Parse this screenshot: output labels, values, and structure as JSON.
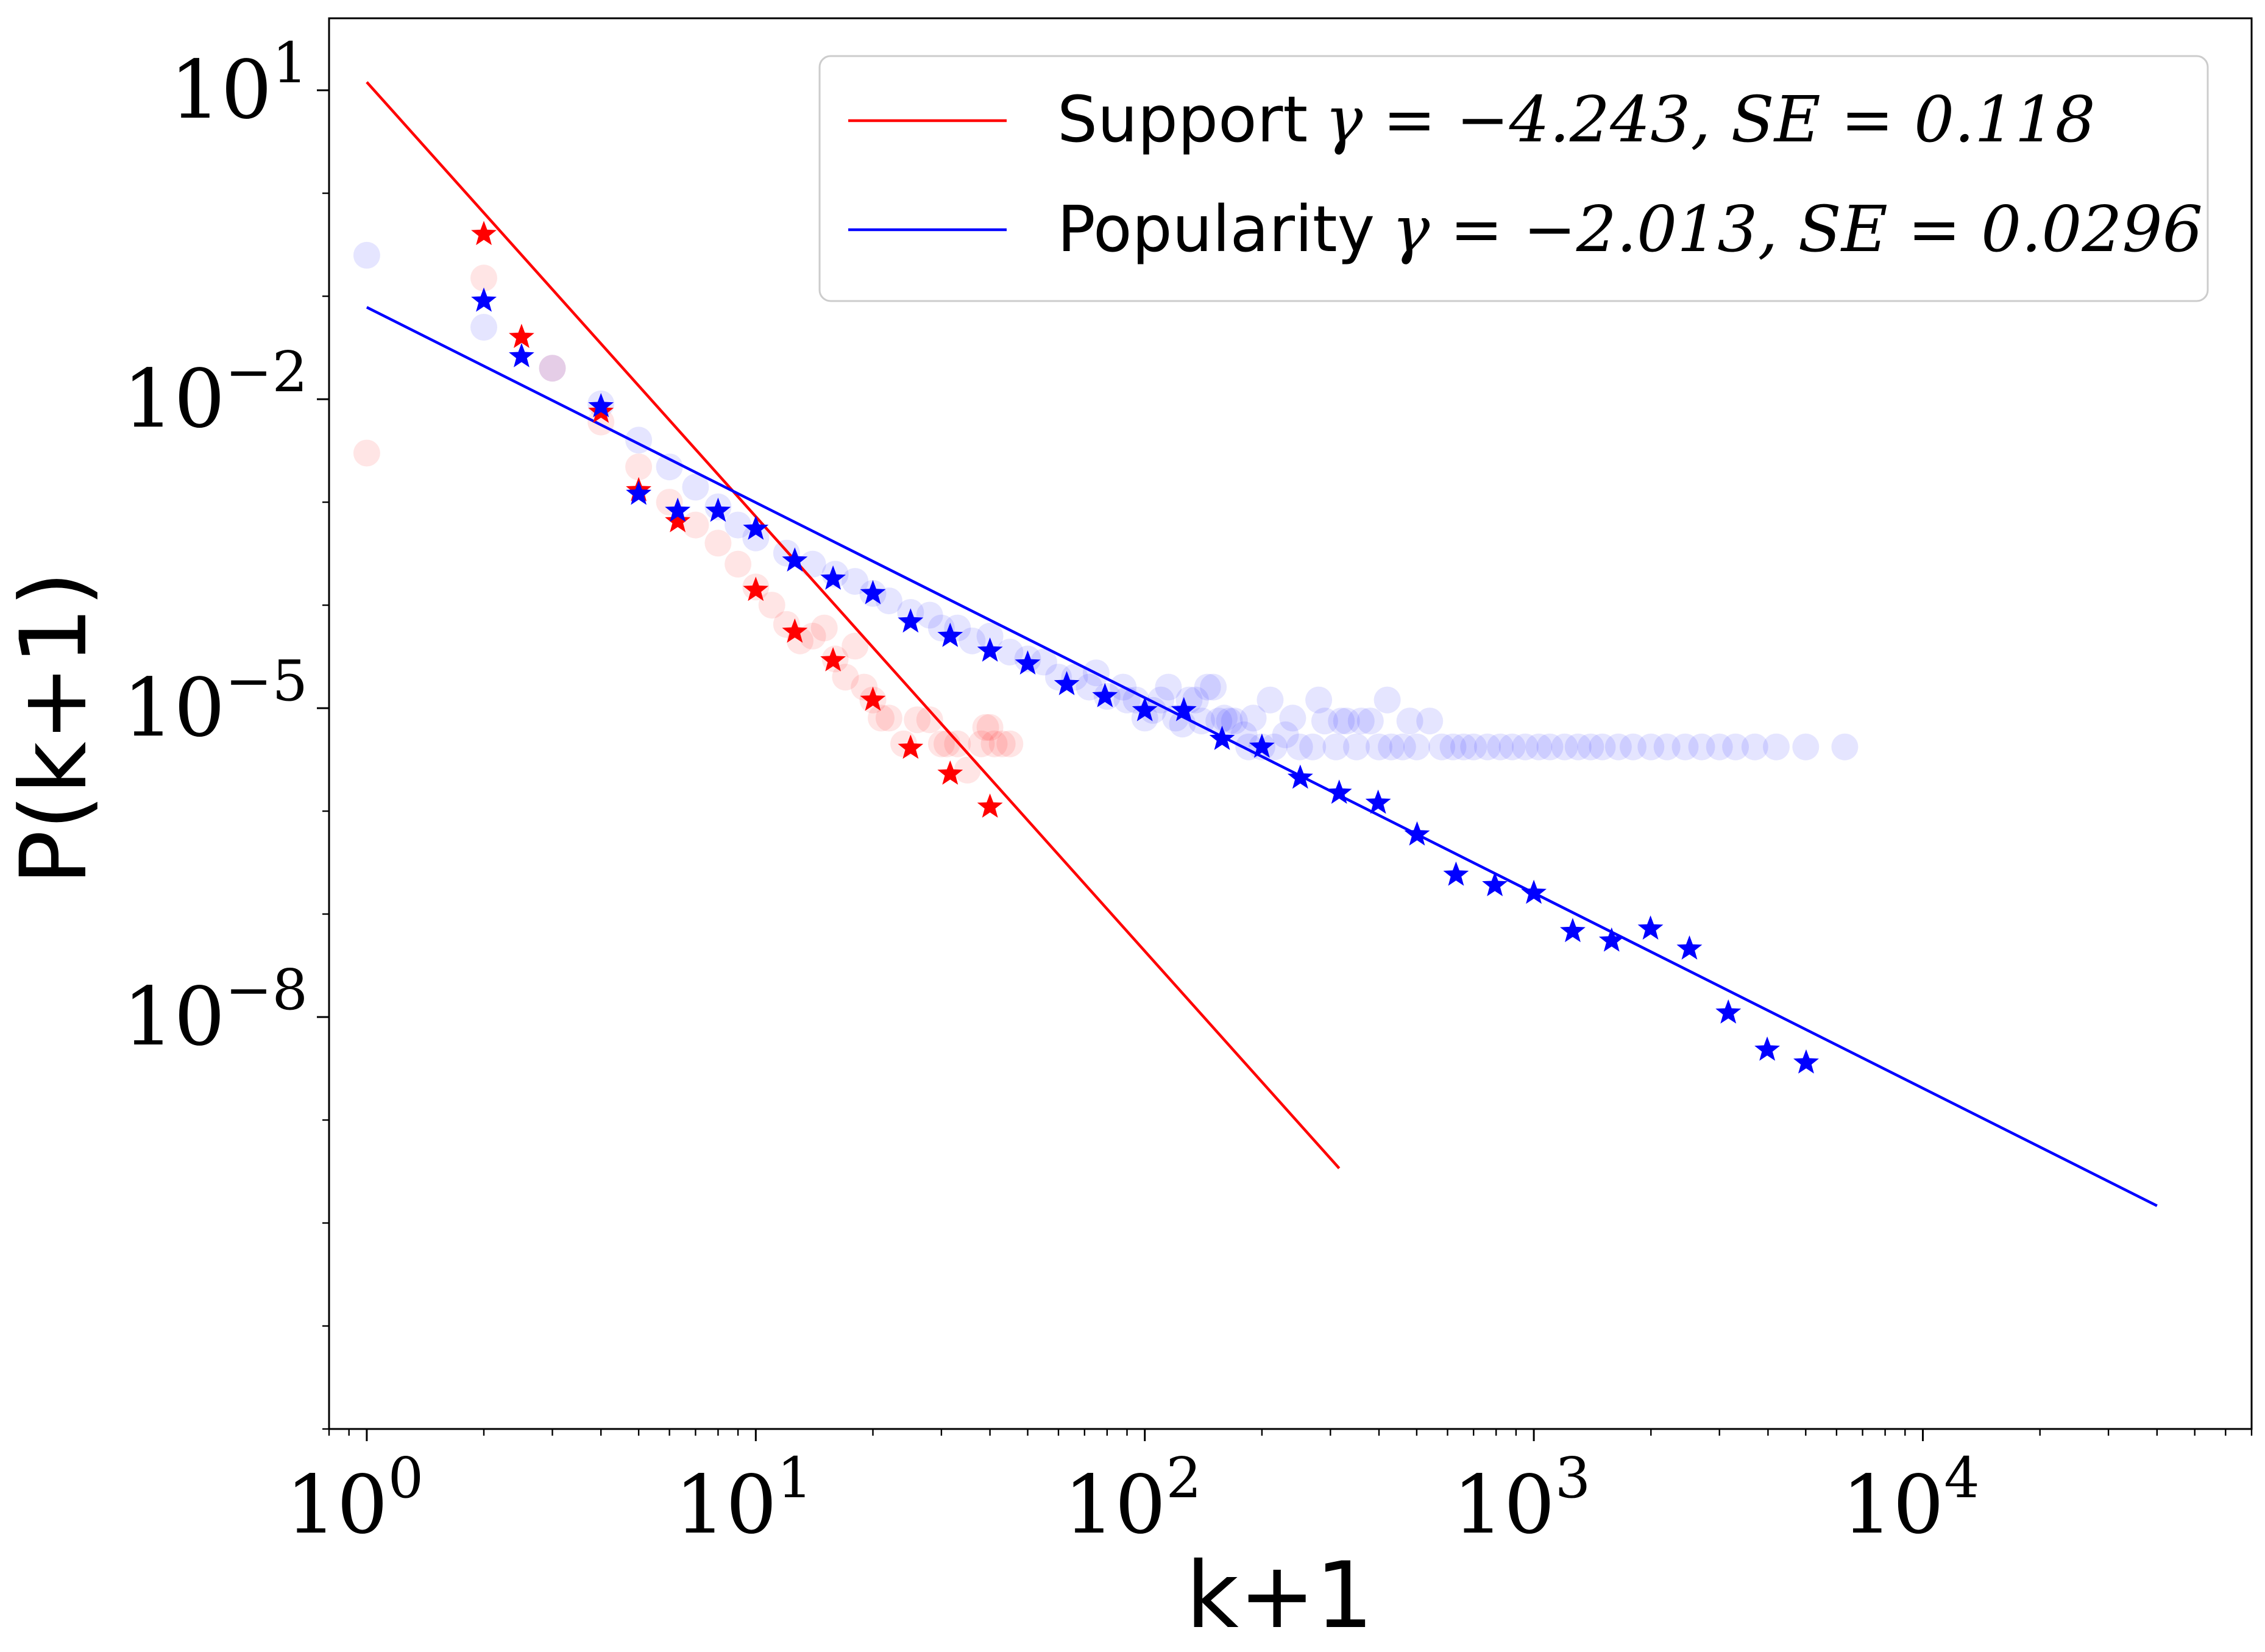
{
  "chart_data": {
    "type": "scatter",
    "title": "",
    "xlabel": "k+1",
    "ylabel": "P(k+1)",
    "xscale": "log",
    "yscale": "log",
    "xlim": [
      0.8,
      70000
    ],
    "ylim": [
      1e-12,
      50
    ],
    "grid": false,
    "legend_position": "top-right",
    "x_ticks": [
      {
        "value": 1,
        "base": "10",
        "exp": "0"
      },
      {
        "value": 10,
        "base": "10",
        "exp": "1"
      },
      {
        "value": 100,
        "base": "10",
        "exp": "2"
      },
      {
        "value": 1000,
        "base": "10",
        "exp": "3"
      },
      {
        "value": 10000,
        "base": "10",
        "exp": "4"
      }
    ],
    "y_ticks": [
      {
        "value": 10,
        "base": "10",
        "exp": "1"
      },
      {
        "value": 0.01,
        "base": "10",
        "exp": "−2"
      },
      {
        "value": 1e-05,
        "base": "10",
        "exp": "−5"
      },
      {
        "value": 1e-08,
        "base": "10",
        "exp": "−8"
      }
    ],
    "series": [
      {
        "name": "Support",
        "legend_text": "Support",
        "legend_math": "γ = −4.243, SE = 0.118",
        "gamma": -4.243,
        "SE": 0.118,
        "color": "#ff0000",
        "fit_line": {
          "x": [
            1,
            316
          ],
          "y": [
            12.0,
            3.4e-10
          ]
        },
        "binned": {
          "x": [
            2,
            2.5,
            4,
            5,
            6.3,
            10,
            12.6,
            15.8,
            20,
            25,
            31.6,
            40
          ],
          "y": [
            0.4,
            0.04,
            0.0075,
            0.0013,
            0.00065,
            0.00014,
            5.5e-05,
            2.9e-05,
            1.2e-05,
            4.1e-06,
            2.3e-06,
            1.1e-06
          ]
        },
        "raw": {
          "x": [
            1,
            2,
            3,
            4,
            5,
            6,
            7,
            8,
            9,
            10,
            11,
            12,
            13,
            14,
            15,
            16,
            17,
            18,
            19,
            20,
            21,
            22,
            24,
            26,
            28,
            30,
            31,
            33,
            35,
            38,
            39,
            40,
            41,
            43,
            45
          ],
          "y": [
            0.003,
            0.15,
            0.02,
            0.006,
            0.0022,
            0.001,
            0.0006,
            0.0004,
            0.00025,
            0.00015,
            0.0001,
            6.5e-05,
            4.5e-05,
            5e-05,
            6e-05,
            3e-05,
            2e-05,
            4e-05,
            1.6e-05,
            1.2e-05,
            8e-06,
            8e-06,
            4.5e-06,
            7.7e-06,
            7.7e-06,
            4.5e-06,
            4.5e-06,
            4.5e-06,
            2.5e-06,
            4.5e-06,
            6.5e-06,
            6.5e-06,
            4.5e-06,
            4.5e-06,
            4.5e-06
          ]
        }
      },
      {
        "name": "Popularity",
        "legend_text": "Popularity",
        "legend_math": "γ = −2.013, SE = 0.0296",
        "gamma": -2.013,
        "SE": 0.0296,
        "color": "#0000ff",
        "fit_line": {
          "x": [
            1,
            40000
          ],
          "y": [
            0.078,
            1.47e-10
          ]
        },
        "binned": {
          "x": [
            2,
            2.5,
            4,
            5,
            6.3,
            8,
            10,
            12.6,
            15.8,
            20,
            25,
            31.6,
            40,
            50,
            63,
            79,
            100,
            126,
            158,
            200,
            251,
            316,
            398,
            501,
            631,
            794,
            1000,
            1259,
            1585,
            1995,
            2512,
            3162,
            3981,
            5012
          ],
          "y": [
            0.09,
            0.026,
            0.0085,
            0.0012,
            0.00082,
            0.00082,
            0.00055,
            0.00027,
            0.00018,
            0.00013,
            6.9e-05,
            5e-05,
            3.6e-05,
            2.7e-05,
            1.7e-05,
            1.3e-05,
            9.5e-06,
            9.5e-06,
            5e-06,
            4.2e-06,
            2.1e-06,
            1.5e-06,
            1.2e-06,
            5.9e-07,
            2.4e-07,
            1.9e-07,
            1.6e-07,
            6.8e-08,
            5.5e-08,
            7.2e-08,
            4.6e-08,
            1.1e-08,
            4.8e-09,
            3.6e-09
          ]
        },
        "raw": {
          "x": [
            1,
            2,
            3,
            4,
            5,
            6,
            7,
            8,
            9,
            10,
            12,
            14,
            16,
            18,
            20,
            22,
            25,
            28,
            30,
            33,
            36,
            40,
            45,
            50,
            55,
            60,
            66,
            72,
            80,
            88,
            95,
            100,
            110,
            120,
            130,
            140,
            150,
            160,
            170,
            180,
            190,
            200,
            215,
            230,
            250,
            270,
            290,
            310,
            330,
            350,
            380,
            400,
            430,
            460,
            500,
            540,
            580,
            620,
            660,
            700,
            760,
            820,
            880,
            950,
            1030,
            1100,
            1200,
            1300,
            1400,
            1500,
            1650,
            1800,
            2000,
            2200,
            2450,
            2700,
            3000,
            3300,
            3700,
            4200,
            5000,
            6300,
            75,
            90,
            105,
            115,
            125,
            135,
            145,
            155,
            165,
            185,
            210,
            240,
            280,
            320,
            360,
            420,
            480
          ],
          "y": [
            0.25,
            0.05,
            0.02,
            0.009,
            0.004,
            0.0022,
            0.0014,
            0.0009,
            0.0006,
            0.00045,
            0.00032,
            0.00025,
            0.0002,
            0.00017,
            0.00013,
            0.00011,
            8.5e-05,
            8e-05,
            6e-05,
            6e-05,
            4.5e-05,
            5e-05,
            3.5e-05,
            3e-05,
            2.8e-05,
            2e-05,
            2e-05,
            1.6e-05,
            1.3e-05,
            1.6e-05,
            1.2e-05,
            8e-06,
            1.2e-05,
            8e-06,
            1.2e-05,
            7.5e-06,
            1.6e-05,
            8e-06,
            7.5e-06,
            5.5e-06,
            8e-06,
            4.2e-06,
            4.2e-06,
            5.5e-06,
            4.2e-06,
            4.2e-06,
            7.5e-06,
            4.2e-06,
            7.5e-06,
            4.2e-06,
            7.5e-06,
            4.2e-06,
            4.2e-06,
            4.2e-06,
            4.2e-06,
            7.5e-06,
            4.2e-06,
            4.2e-06,
            4.2e-06,
            4.2e-06,
            4.2e-06,
            4.2e-06,
            4.2e-06,
            4.2e-06,
            4.2e-06,
            4.2e-06,
            4.2e-06,
            4.2e-06,
            4.2e-06,
            4.2e-06,
            4.2e-06,
            4.2e-06,
            4.2e-06,
            4.2e-06,
            4.2e-06,
            4.2e-06,
            4.2e-06,
            4.2e-06,
            4.2e-06,
            4.2e-06,
            4.2e-06,
            4.2e-06,
            2.2e-05,
            1.2e-05,
            9.5e-06,
            1.6e-05,
            7e-06,
            1.2e-05,
            1.6e-05,
            7.5e-06,
            7.5e-06,
            4.2e-06,
            1.2e-05,
            8e-06,
            1.2e-05,
            7.5e-06,
            7.5e-06,
            1.2e-05,
            7.5e-06
          ]
        }
      }
    ]
  }
}
